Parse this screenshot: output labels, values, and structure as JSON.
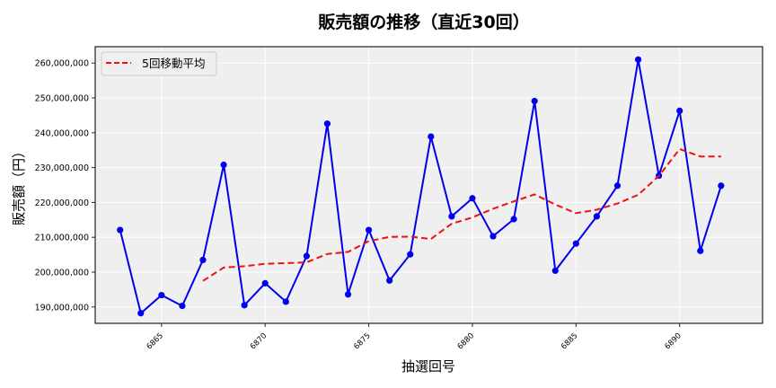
{
  "chart_data": {
    "type": "line",
    "title": "販売額の推移（直近30回）",
    "xlabel": "抽選回号",
    "ylabel": "販売額（円）",
    "x": [
      6863,
      6864,
      6865,
      6866,
      6867,
      6868,
      6869,
      6870,
      6871,
      6872,
      6873,
      6874,
      6875,
      6876,
      6877,
      6878,
      6879,
      6880,
      6881,
      6882,
      6883,
      6884,
      6885,
      6886,
      6887,
      6888,
      6889,
      6890,
      6891,
      6892
    ],
    "series": [
      {
        "name": "販売額",
        "color": "#0000ee",
        "style": "solid-with-markers",
        "values": [
          212100000,
          188200000,
          193400000,
          190300000,
          203500000,
          230800000,
          190500000,
          196800000,
          191500000,
          204600000,
          242600000,
          193600000,
          212100000,
          197600000,
          205100000,
          238900000,
          216000000,
          221200000,
          210300000,
          215200000,
          249100000,
          200400000,
          208200000,
          216000000,
          224800000,
          261000000,
          227700000,
          246300000,
          206100000,
          224800000
        ]
      },
      {
        "name": "5回移動平均",
        "color": "#ee1111",
        "style": "dashed",
        "values": [
          null,
          null,
          null,
          null,
          197500000,
          201300000,
          201700000,
          202400000,
          202600000,
          202800000,
          205200000,
          205800000,
          208900000,
          210100000,
          210200000,
          209500000,
          213900000,
          215700000,
          218200000,
          220300000,
          222300000,
          219400000,
          216900000,
          217900000,
          219700000,
          222200000,
          227600000,
          235300000,
          233200000,
          233200000
        ]
      }
    ],
    "xticks": [
      6865,
      6870,
      6875,
      6880,
      6885,
      6890
    ],
    "yticks": [
      190000000,
      200000000,
      210000000,
      220000000,
      230000000,
      240000000,
      250000000,
      260000000
    ],
    "ytick_labels": [
      "190,000,000",
      "200,000,000",
      "210,000,000",
      "220,000,000",
      "230,000,000",
      "240,000,000",
      "250,000,000",
      "260,000,000"
    ],
    "xlim": [
      6861.8,
      6894.0
    ],
    "ylim": [
      185300000,
      264700000
    ],
    "grid": true,
    "legend": {
      "position": "upper left",
      "entries": [
        "5回移動平均"
      ]
    }
  },
  "colors": {
    "plot_bg": "#efefef",
    "grid": "#ffffff",
    "frame": "#222222"
  }
}
